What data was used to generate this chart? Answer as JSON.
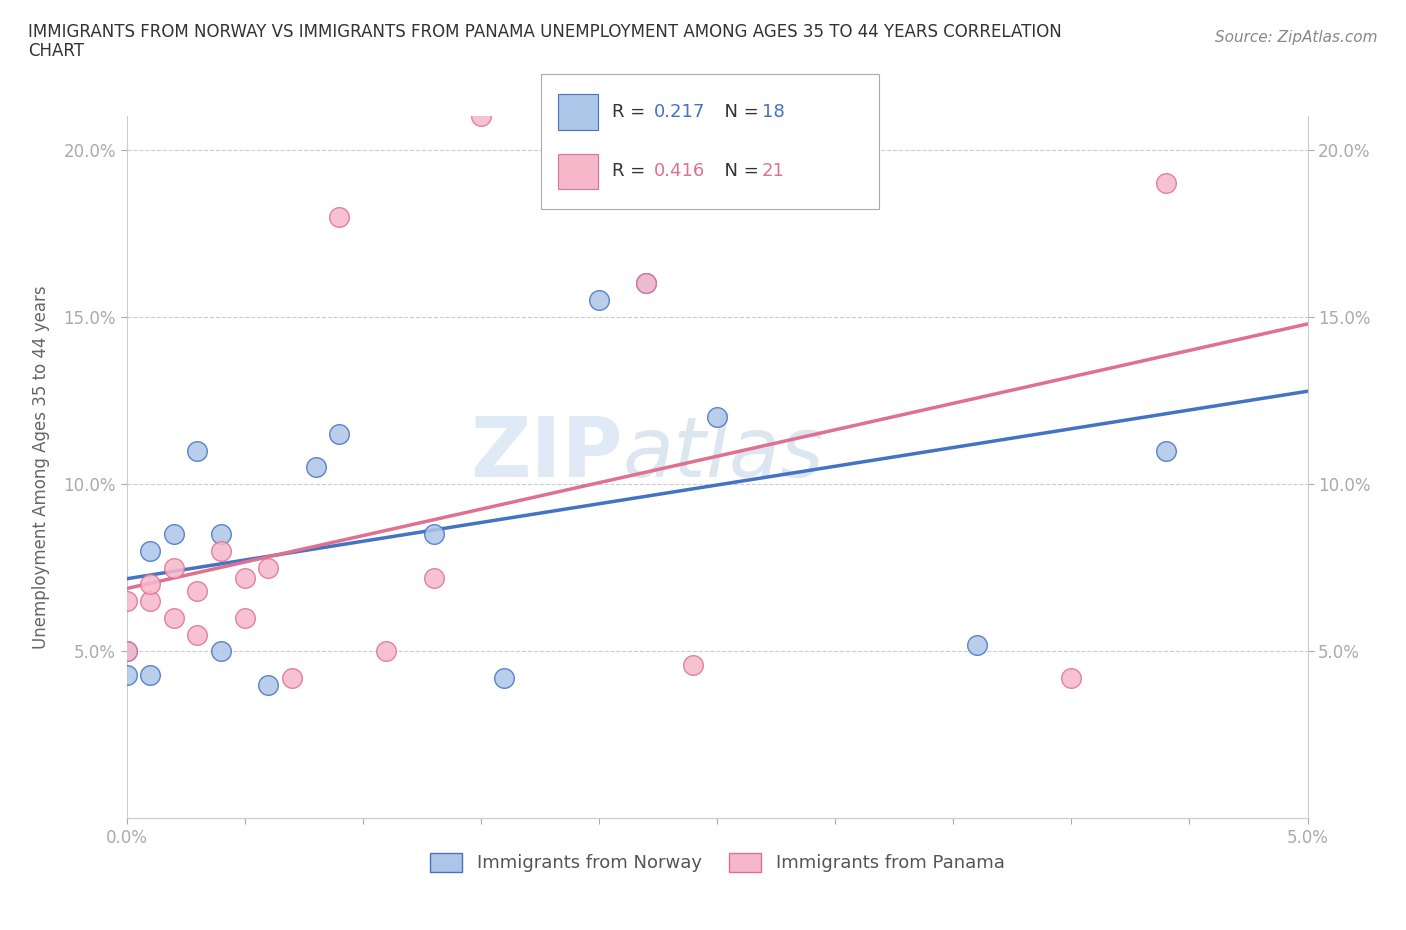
{
  "title_line1": "IMMIGRANTS FROM NORWAY VS IMMIGRANTS FROM PANAMA UNEMPLOYMENT AMONG AGES 35 TO 44 YEARS CORRELATION",
  "title_line2": "CHART",
  "source_text": "Source: ZipAtlas.com",
  "ylabel": "Unemployment Among Ages 35 to 44 years",
  "xlim": [
    0.0,
    0.05
  ],
  "ylim": [
    0.0,
    0.21
  ],
  "x_ticks": [
    0.0,
    0.005,
    0.01,
    0.015,
    0.02,
    0.025,
    0.03,
    0.035,
    0.04,
    0.045,
    0.05
  ],
  "x_tick_labels": [
    "0.0%",
    "",
    "",
    "",
    "",
    "",
    "",
    "",
    "",
    "",
    "5.0%"
  ],
  "y_ticks": [
    0.05,
    0.1,
    0.15,
    0.2
  ],
  "y_tick_labels": [
    "5.0%",
    "10.0%",
    "15.0%",
    "20.0%"
  ],
  "norway_color": "#adc6e8",
  "panama_color": "#f5b8cb",
  "norway_edge_color": "#4472c4",
  "panama_edge_color": "#e07090",
  "norway_line_color": "#4472c4",
  "panama_line_color": "#e07090",
  "norway_R": "0.217",
  "norway_N": "18",
  "panama_R": "0.416",
  "panama_N": "21",
  "norway_scatter_x": [
    0.0,
    0.0,
    0.001,
    0.001,
    0.002,
    0.003,
    0.004,
    0.004,
    0.006,
    0.008,
    0.009,
    0.013,
    0.016,
    0.02,
    0.022,
    0.025,
    0.036,
    0.044
  ],
  "norway_scatter_y": [
    0.05,
    0.043,
    0.043,
    0.08,
    0.085,
    0.11,
    0.085,
    0.05,
    0.04,
    0.105,
    0.115,
    0.085,
    0.042,
    0.155,
    0.16,
    0.12,
    0.052,
    0.11
  ],
  "panama_scatter_x": [
    0.0,
    0.0,
    0.001,
    0.001,
    0.002,
    0.002,
    0.003,
    0.003,
    0.004,
    0.005,
    0.005,
    0.006,
    0.007,
    0.009,
    0.011,
    0.013,
    0.015,
    0.022,
    0.024,
    0.04,
    0.044
  ],
  "panama_scatter_y": [
    0.05,
    0.065,
    0.065,
    0.07,
    0.06,
    0.075,
    0.068,
    0.055,
    0.08,
    0.072,
    0.06,
    0.075,
    0.042,
    0.18,
    0.05,
    0.072,
    0.21,
    0.16,
    0.046,
    0.042,
    0.19
  ],
  "background_color": "#ffffff",
  "watermark_text": "ZIP",
  "watermark_text2": "atlas",
  "legend_label_norway": "Immigrants from Norway",
  "legend_label_panama": "Immigrants from Panama"
}
